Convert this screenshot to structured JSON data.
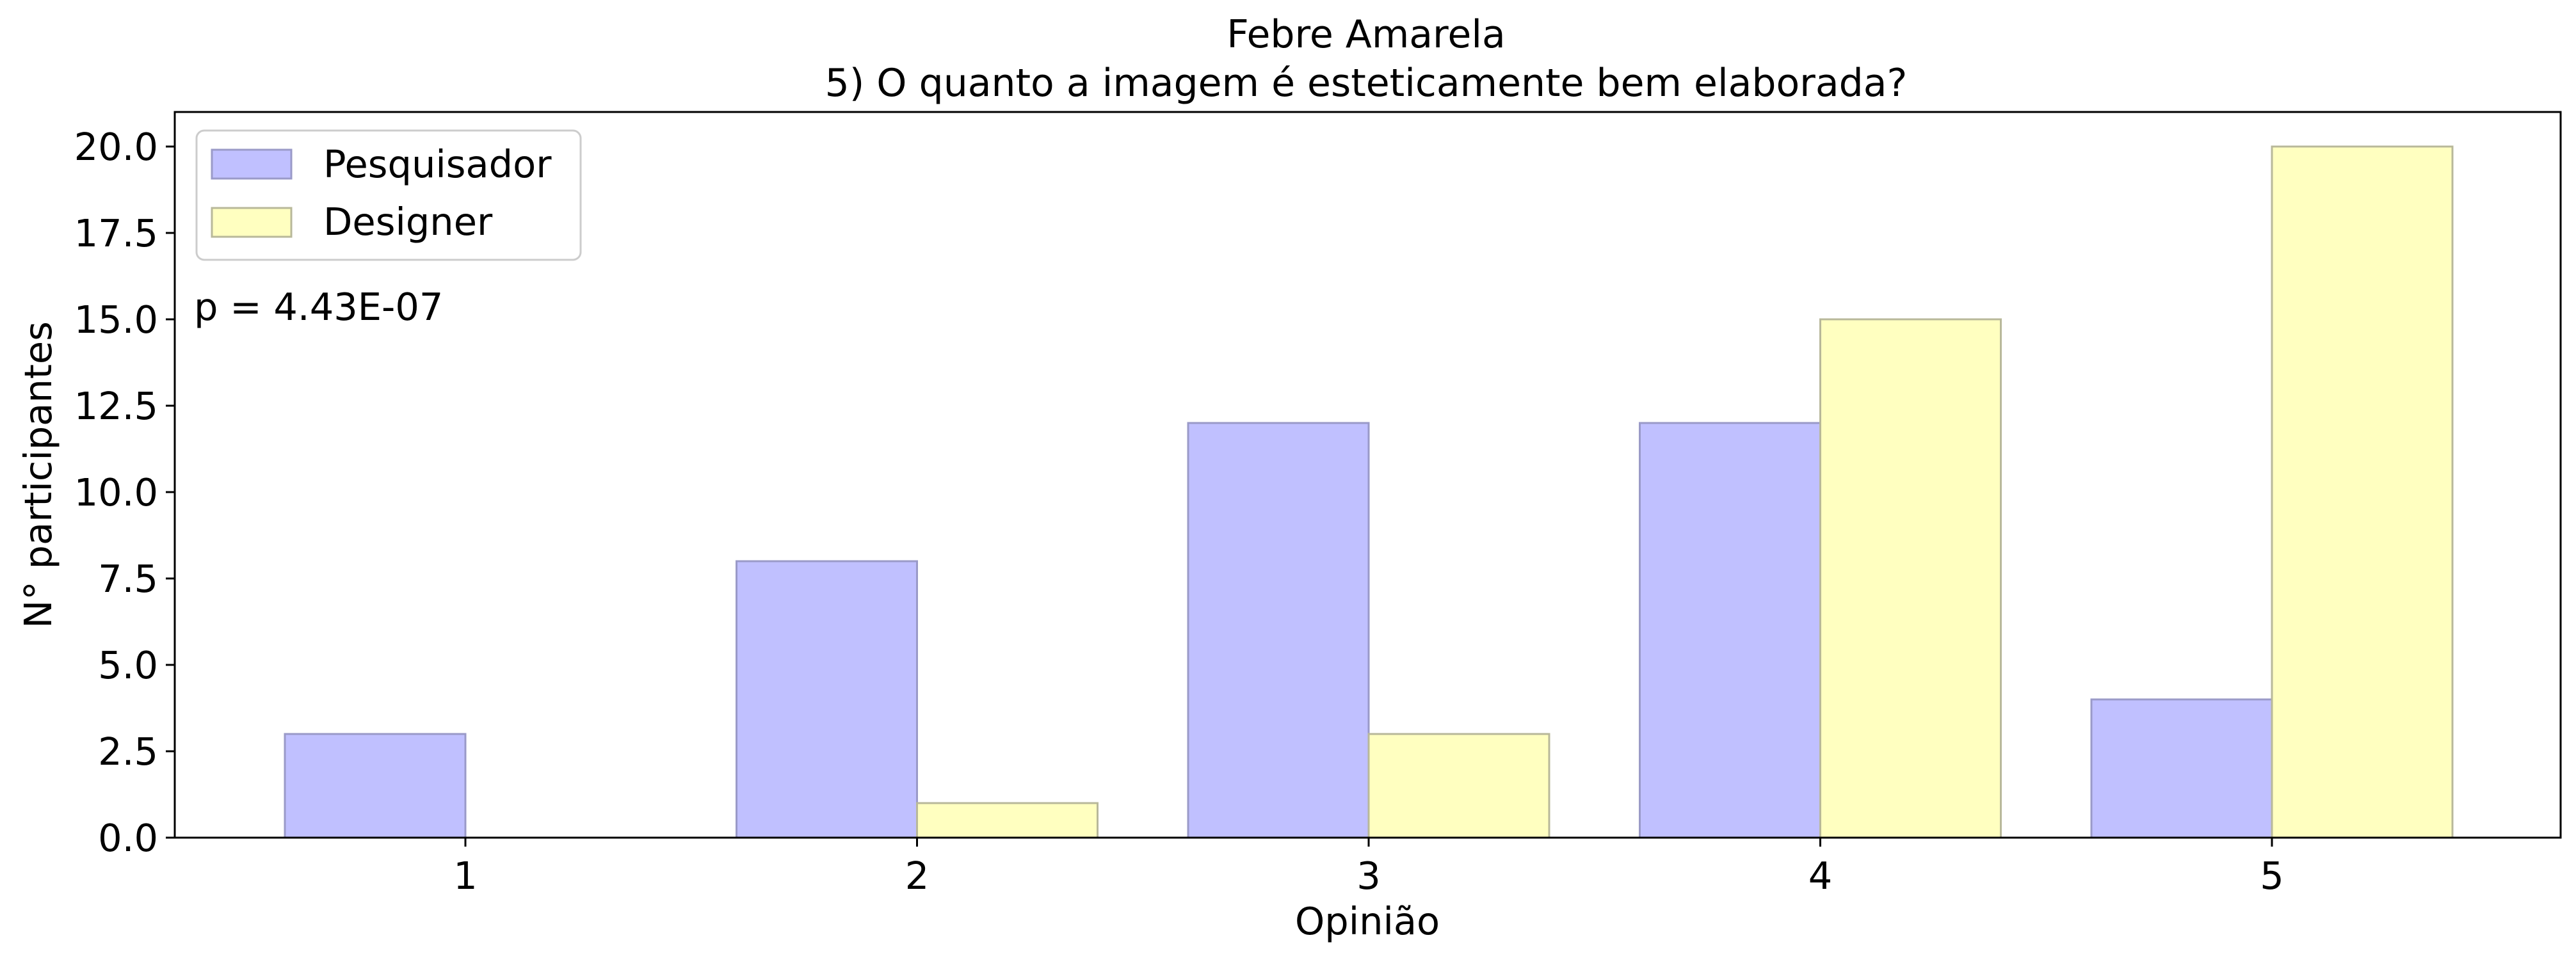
{
  "chart_data": {
    "type": "bar",
    "title_line1": "Febre Amarela",
    "title_line2": "5) O quanto a imagem é esteticamente bem elaborada?",
    "xlabel": "Opinião",
    "ylabel": "N° participantes",
    "categories": [
      "1",
      "2",
      "3",
      "4",
      "5"
    ],
    "series": [
      {
        "name": "Pesquisador",
        "values": [
          3,
          8,
          12,
          12,
          4
        ],
        "color": "#c0c0ff",
        "edge": "#9a9ac8"
      },
      {
        "name": "Designer",
        "values": [
          0,
          1,
          3,
          15,
          20
        ],
        "color": "#ffffc0",
        "edge": "#b8b89a"
      }
    ],
    "ylim": [
      0,
      21
    ],
    "yticks": [
      0.0,
      2.5,
      5.0,
      7.5,
      10.0,
      12.5,
      15.0,
      17.5,
      20.0
    ],
    "ytick_labels": [
      "0.0",
      "2.5",
      "5.0",
      "7.5",
      "10.0",
      "12.5",
      "15.0",
      "17.5",
      "20.0"
    ],
    "annotation": "p = 4.43E-07",
    "legend_position": "upper-left",
    "grid": false
  }
}
